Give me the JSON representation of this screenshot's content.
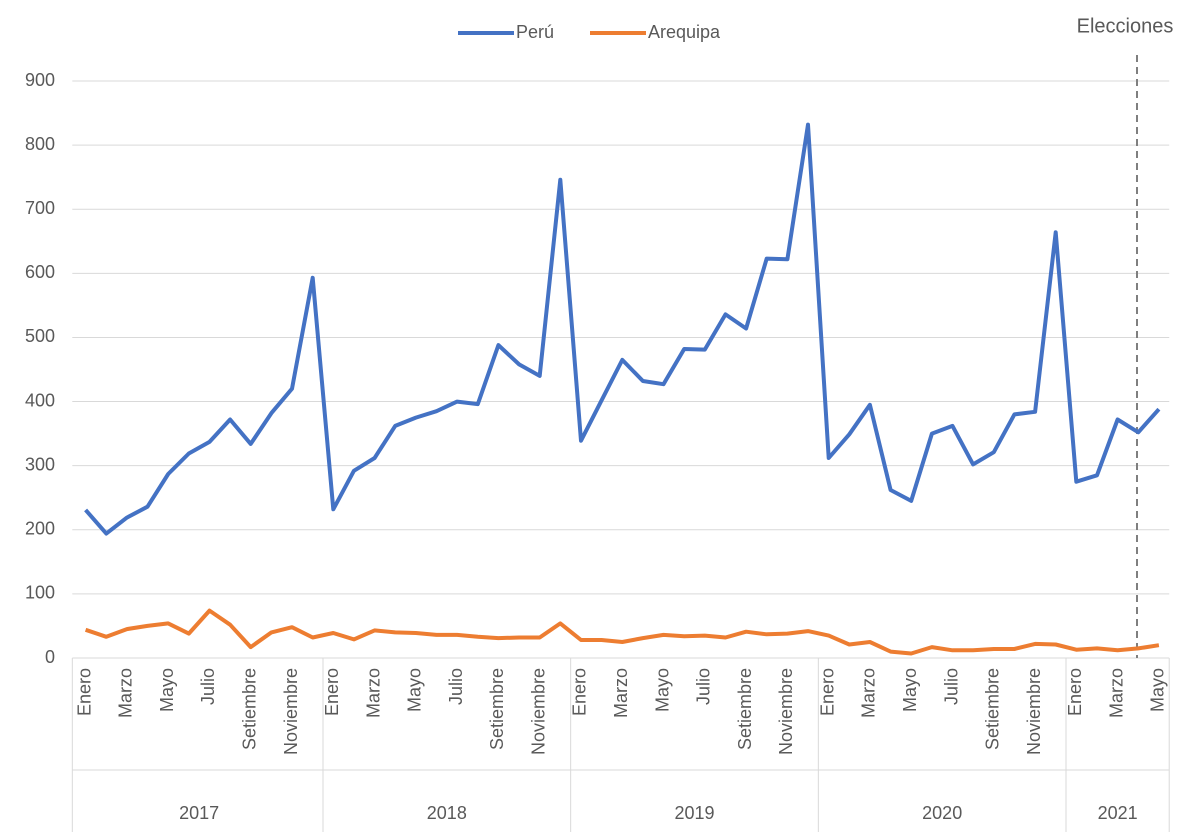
{
  "chart_data": {
    "type": "line",
    "groups": [
      {
        "name": "2017",
        "categories": [
          "Enero",
          null,
          "Marzo",
          null,
          "Mayo",
          null,
          "Julio",
          null,
          "Setiembre",
          null,
          "Noviembre",
          null
        ]
      },
      {
        "name": "2018",
        "categories": [
          "Enero",
          null,
          "Marzo",
          null,
          "Mayo",
          null,
          "Julio",
          null,
          "Setiembre",
          null,
          "Noviembre",
          null
        ]
      },
      {
        "name": "2019",
        "categories": [
          "Enero",
          null,
          "Marzo",
          null,
          "Mayo",
          null,
          "Julio",
          null,
          "Setiembre",
          null,
          "Noviembre",
          null
        ]
      },
      {
        "name": "2020",
        "categories": [
          "Enero",
          null,
          "Marzo",
          null,
          "Mayo",
          null,
          "Julio",
          null,
          "Setiembre",
          null,
          "Noviembre",
          null
        ]
      },
      {
        "name": "2021",
        "categories": [
          "Enero",
          null,
          "Marzo",
          null,
          "Mayo"
        ]
      }
    ],
    "series": [
      {
        "name": "Perú",
        "color": "#4472c4",
        "values": [
          231,
          194,
          219,
          236,
          287,
          319,
          337,
          372,
          334,
          382,
          420,
          593,
          232,
          292,
          312,
          362,
          375,
          385,
          400,
          396,
          488,
          458,
          440,
          746,
          339,
          402,
          465,
          432,
          427,
          482,
          481,
          536,
          514,
          623,
          622,
          832,
          312,
          349,
          395,
          262,
          245,
          350,
          362,
          302,
          321,
          380,
          384,
          664,
          275,
          285,
          372,
          352,
          388
        ]
      },
      {
        "name": "Arequipa",
        "color": "#ed7d31",
        "values": [
          44,
          33,
          45,
          50,
          54,
          38,
          74,
          52,
          17,
          40,
          48,
          32,
          39,
          29,
          43,
          40,
          39,
          36,
          36,
          33,
          31,
          32,
          32,
          54,
          28,
          28,
          25,
          31,
          36,
          34,
          35,
          32,
          41,
          37,
          38,
          42,
          35,
          21,
          25,
          10,
          7,
          17,
          12,
          12,
          14,
          14,
          22,
          21,
          13,
          15,
          12,
          15,
          20
        ]
      }
    ],
    "annotation": "Elecciones",
    "ylim": [
      0,
      900
    ],
    "yticks": [
      0,
      100,
      200,
      300,
      400,
      500,
      600,
      700,
      800,
      900
    ],
    "grid": true,
    "legend": "top"
  }
}
